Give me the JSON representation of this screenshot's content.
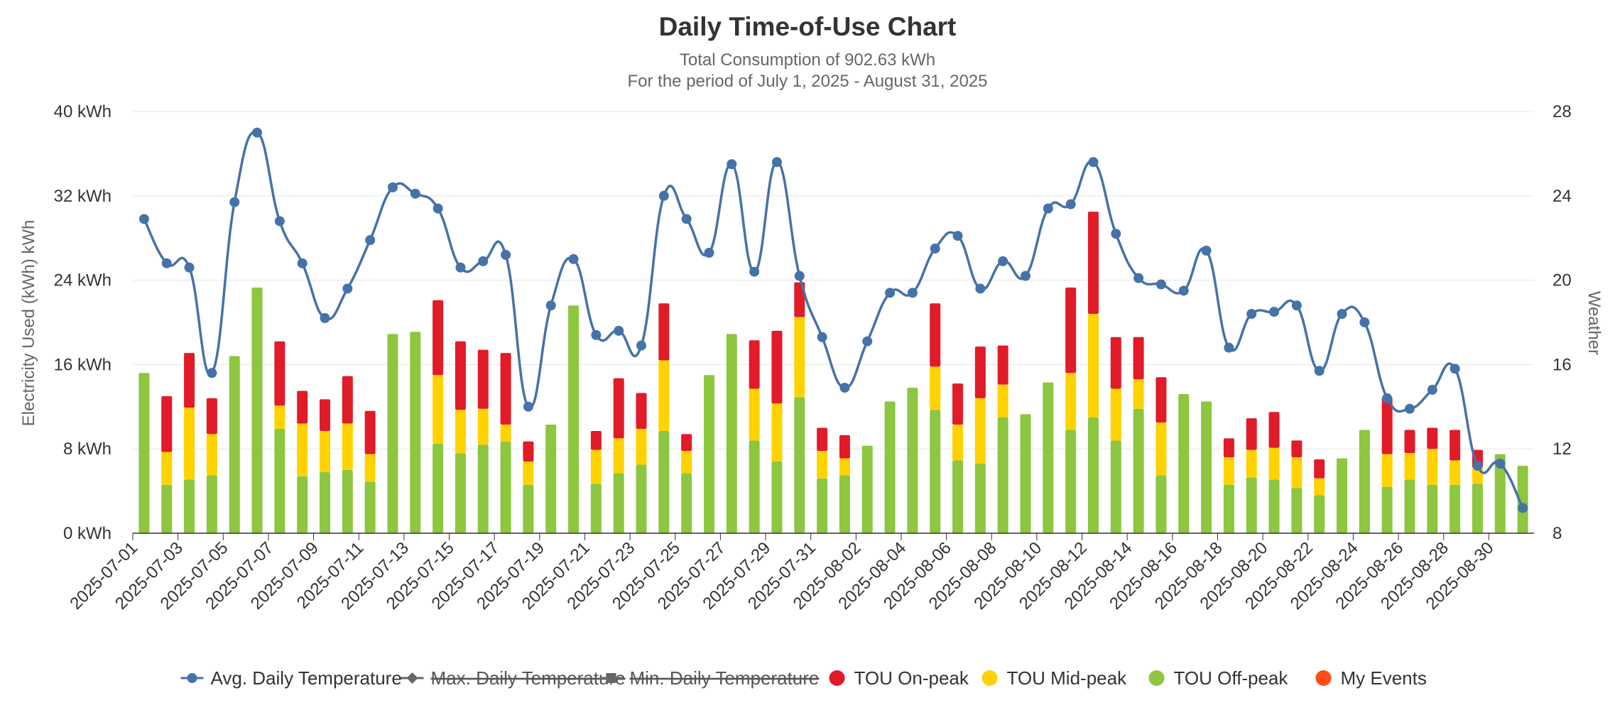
{
  "chart_data": {
    "type": "bar",
    "title": "Daily Time-of-Use Chart",
    "subtitle_lines": [
      "Total Consumption of 902.63 kWh",
      "For the period of July 1, 2025 - August 31, 2025"
    ],
    "ylabel": "Electricity Used (kWh) kWh",
    "ylabel_right": "Weather",
    "ylim": [
      0,
      40
    ],
    "ylim_right": [
      8,
      28
    ],
    "y_ticks": [
      "0 kWh",
      "8 kWh",
      "16 kWh",
      "24 kWh",
      "32 kWh",
      "40 kWh"
    ],
    "y_ticks_right": [
      "8",
      "12",
      "16",
      "20",
      "24",
      "28"
    ],
    "grid": true,
    "legend_position": "bottom",
    "stacked": true,
    "categories": [
      "2025-07-01",
      "2025-07-02",
      "2025-07-03",
      "2025-07-04",
      "2025-07-05",
      "2025-07-06",
      "2025-07-07",
      "2025-07-08",
      "2025-07-09",
      "2025-07-10",
      "2025-07-11",
      "2025-07-12",
      "2025-07-13",
      "2025-07-14",
      "2025-07-15",
      "2025-07-16",
      "2025-07-17",
      "2025-07-18",
      "2025-07-19",
      "2025-07-20",
      "2025-07-21",
      "2025-07-22",
      "2025-07-23",
      "2025-07-24",
      "2025-07-25",
      "2025-07-26",
      "2025-07-27",
      "2025-07-28",
      "2025-07-29",
      "2025-07-30",
      "2025-07-31",
      "2025-08-01",
      "2025-08-02",
      "2025-08-03",
      "2025-08-04",
      "2025-08-05",
      "2025-08-06",
      "2025-08-07",
      "2025-08-08",
      "2025-08-09",
      "2025-08-10",
      "2025-08-11",
      "2025-08-12",
      "2025-08-13",
      "2025-08-14",
      "2025-08-15",
      "2025-08-16",
      "2025-08-17",
      "2025-08-18",
      "2025-08-19",
      "2025-08-20",
      "2025-08-21",
      "2025-08-22",
      "2025-08-23",
      "2025-08-24",
      "2025-08-25",
      "2025-08-26",
      "2025-08-27",
      "2025-08-28",
      "2025-08-29",
      "2025-08-30",
      "2025-08-31"
    ],
    "x_tick_labels": [
      "2025-07-01",
      "2025-07-03",
      "2025-07-05",
      "2025-07-07",
      "2025-07-09",
      "2025-07-11",
      "2025-07-13",
      "2025-07-15",
      "2025-07-17",
      "2025-07-19",
      "2025-07-21",
      "2025-07-23",
      "2025-07-25",
      "2025-07-27",
      "2025-07-29",
      "2025-07-31",
      "2025-08-02",
      "2025-08-04",
      "2025-08-06",
      "2025-08-08",
      "2025-08-10",
      "2025-08-12",
      "2025-08-14",
      "2025-08-16",
      "2025-08-18",
      "2025-08-20",
      "2025-08-22",
      "2025-08-24",
      "2025-08-26",
      "2025-08-28",
      "2025-08-30"
    ],
    "series": [
      {
        "name": "TOU Off-peak",
        "color": "#8dc63f",
        "values": [
          15.2,
          4.6,
          5.1,
          5.5,
          16.8,
          23.3,
          9.9,
          5.4,
          5.8,
          6.0,
          4.9,
          18.9,
          19.1,
          8.5,
          7.6,
          8.4,
          8.7,
          4.6,
          10.3,
          21.6,
          4.7,
          5.7,
          6.5,
          9.7,
          5.7,
          15.0,
          18.9,
          8.8,
          6.8,
          12.9,
          5.2,
          5.5,
          8.3,
          12.5,
          13.8,
          11.7,
          6.9,
          6.6,
          11.0,
          11.3,
          14.3,
          9.8,
          11.0,
          8.8,
          11.8,
          5.5,
          13.2,
          12.5,
          4.6,
          5.3,
          5.1,
          4.3,
          3.6,
          7.1,
          9.8,
          4.4,
          5.1,
          4.6,
          4.6,
          4.7,
          7.5,
          6.4
        ]
      },
      {
        "name": "TOU Mid-peak",
        "color": "#ffd200",
        "values": [
          0,
          3.1,
          6.8,
          3.9,
          0,
          0,
          2.2,
          5.0,
          3.9,
          4.4,
          2.6,
          0,
          0,
          6.5,
          4.1,
          3.4,
          1.6,
          2.2,
          0,
          0,
          3.2,
          3.3,
          3.4,
          6.7,
          2.1,
          0,
          0,
          4.9,
          5.5,
          7.6,
          2.6,
          1.6,
          0,
          0,
          0,
          4.1,
          3.4,
          6.2,
          3.1,
          0,
          0,
          5.4,
          9.8,
          4.9,
          2.8,
          5.0,
          0,
          0,
          2.6,
          2.6,
          3.0,
          2.9,
          1.6,
          0,
          0,
          3.1,
          2.5,
          3.4,
          2.3,
          1.5,
          0,
          0
        ]
      },
      {
        "name": "TOU On-peak",
        "color": "#e11b28",
        "values": [
          0,
          5.3,
          5.2,
          3.4,
          0,
          0,
          6.1,
          3.1,
          3.0,
          4.5,
          4.1,
          0,
          0,
          7.1,
          6.5,
          5.6,
          6.8,
          1.9,
          0,
          0,
          1.8,
          5.7,
          3.4,
          5.4,
          1.6,
          0,
          0,
          4.6,
          6.9,
          3.3,
          2.2,
          2.2,
          0,
          0,
          0,
          6.0,
          3.9,
          4.9,
          3.7,
          0,
          0,
          8.1,
          9.7,
          4.9,
          4.0,
          4.3,
          0,
          0,
          1.8,
          3.0,
          3.4,
          1.6,
          1.8,
          0,
          0,
          5.4,
          2.2,
          2.0,
          2.9,
          1.7,
          0,
          0
        ]
      },
      {
        "name": "Avg. Daily Temperature",
        "type": "line",
        "axis": "right",
        "color": "#4572a7",
        "values": [
          22.9,
          20.8,
          20.6,
          15.6,
          23.7,
          27.0,
          22.8,
          20.8,
          18.2,
          19.6,
          21.9,
          24.4,
          24.1,
          23.4,
          20.6,
          20.9,
          21.2,
          14.0,
          18.8,
          21.0,
          17.4,
          17.6,
          16.9,
          24.0,
          22.9,
          21.3,
          25.5,
          20.4,
          25.6,
          20.2,
          17.3,
          14.9,
          17.1,
          19.4,
          19.4,
          21.5,
          22.1,
          19.6,
          20.9,
          20.2,
          23.4,
          23.6,
          25.6,
          22.2,
          20.1,
          19.8,
          19.5,
          21.4,
          16.8,
          18.4,
          18.5,
          18.8,
          15.7,
          18.4,
          18.0,
          14.4,
          13.9,
          14.8,
          15.8,
          11.2,
          11.3,
          9.2
        ]
      }
    ]
  },
  "legend": [
    {
      "label": "Avg. Daily Temperature",
      "color": "#4572a7",
      "symbol": "line-circle",
      "hidden": false
    },
    {
      "label": "Max. Daily Temperature",
      "color": "#666666",
      "symbol": "line-diamond",
      "hidden": true
    },
    {
      "label": "Min. Daily Temperature",
      "color": "#666666",
      "symbol": "line-square",
      "hidden": true
    },
    {
      "label": "TOU On-peak",
      "color": "#e11b28",
      "symbol": "circle",
      "hidden": false
    },
    {
      "label": "TOU Mid-peak",
      "color": "#ffd200",
      "symbol": "circle",
      "hidden": false
    },
    {
      "label": "TOU Off-peak",
      "color": "#8dc63f",
      "symbol": "circle",
      "hidden": false
    },
    {
      "label": "My Events",
      "color": "#ff4d16",
      "symbol": "circle",
      "hidden": false
    }
  ]
}
